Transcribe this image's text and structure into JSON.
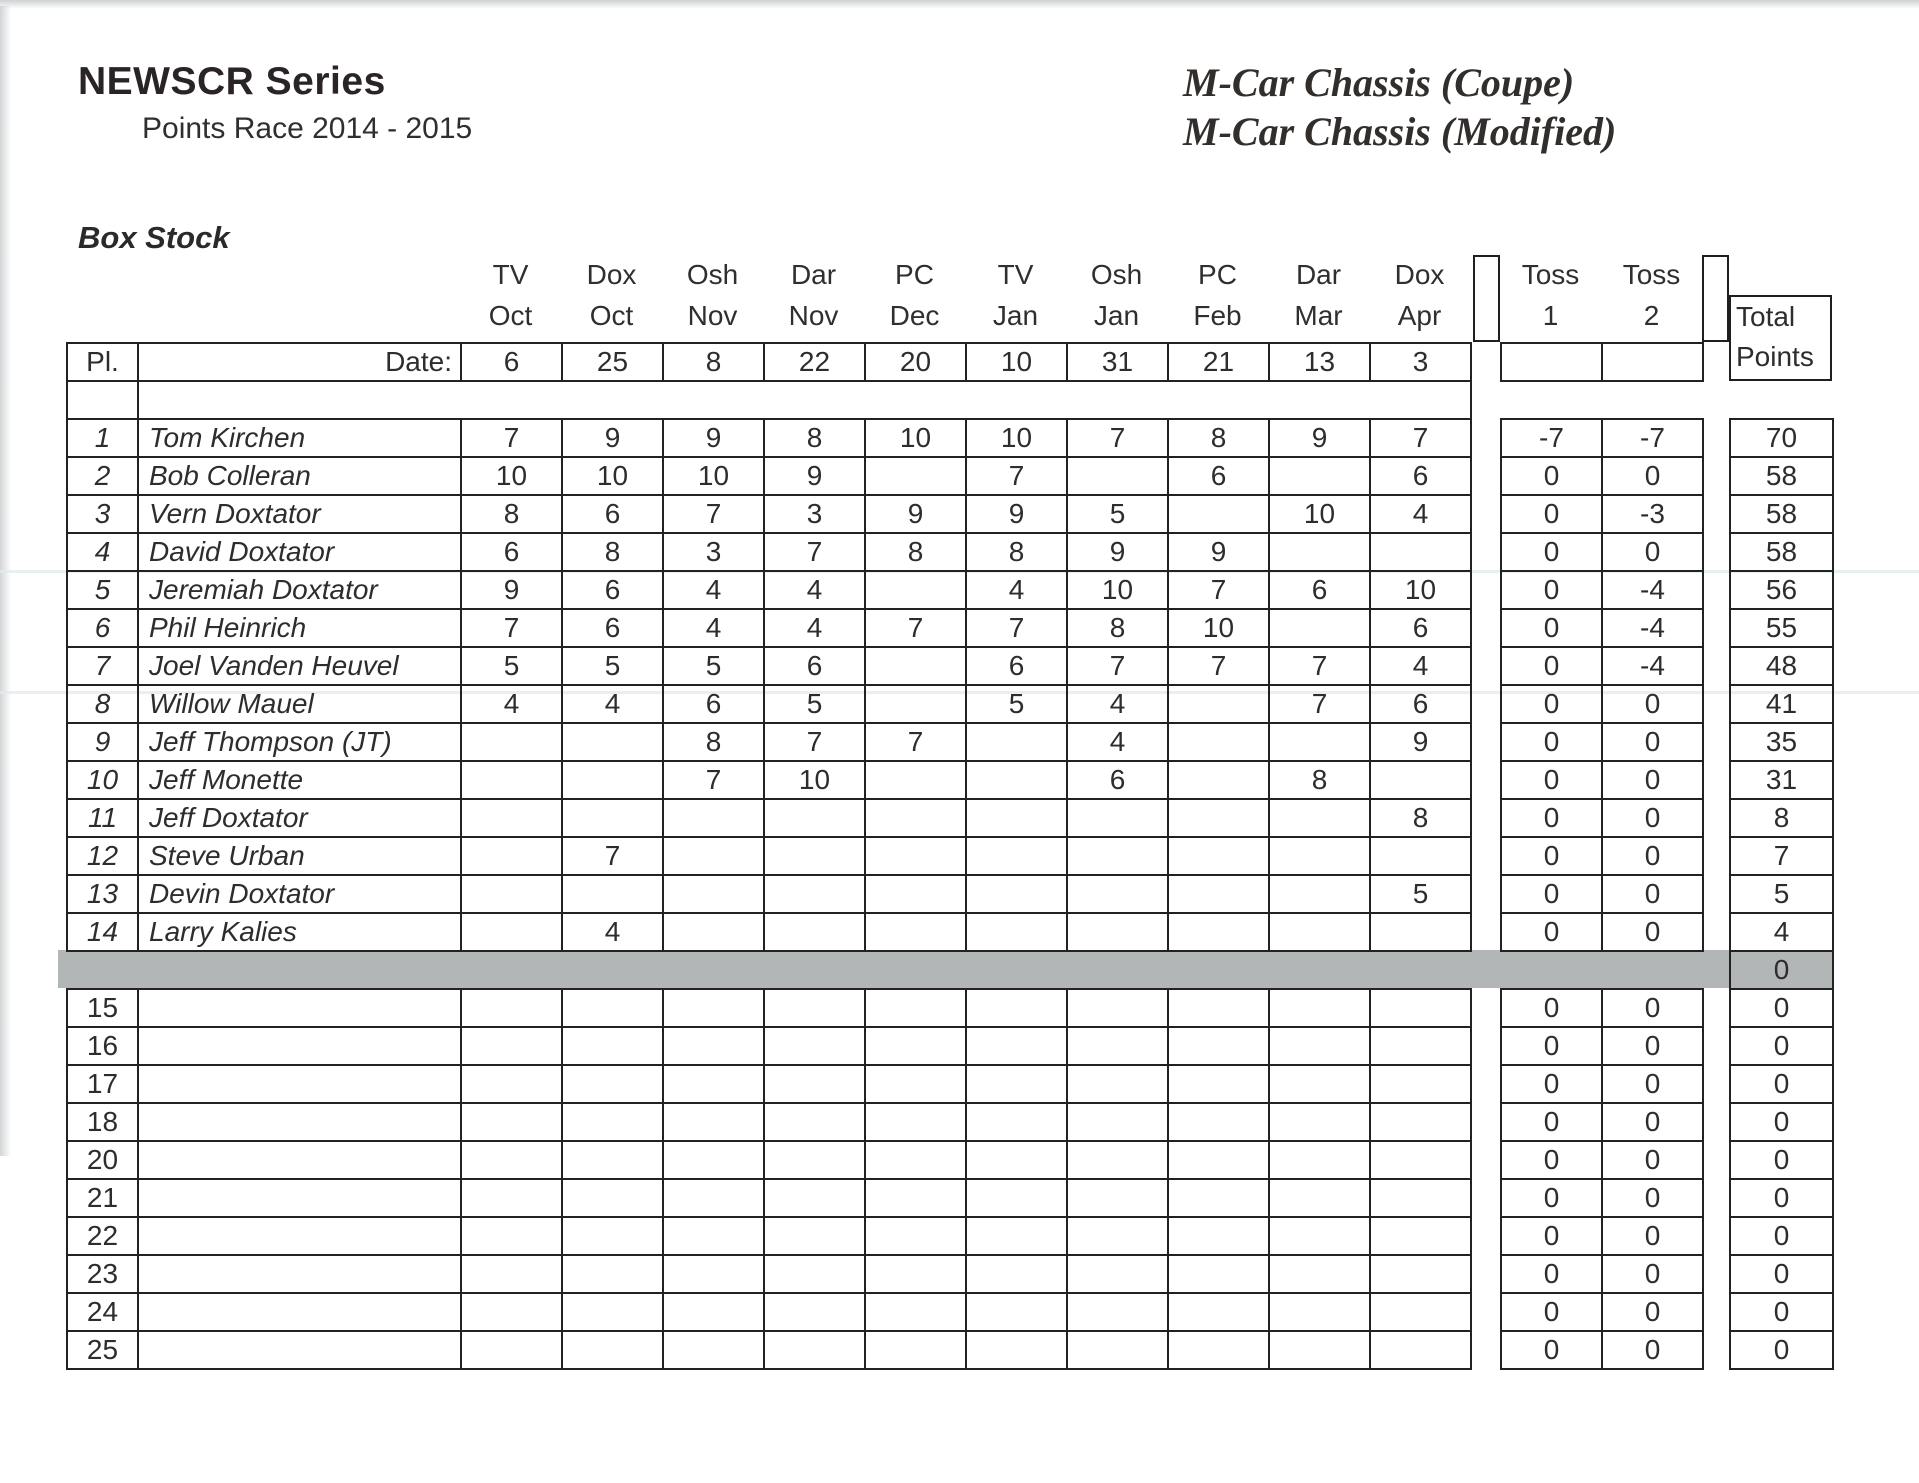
{
  "header": {
    "series_title": "NEWSCR Series",
    "subtitle": "Points Race 2014 - 2015",
    "chassis_coupe": "M-Car Chassis (Coupe)",
    "chassis_modified": "M-Car Chassis (Modified)",
    "class_name": "Box Stock"
  },
  "table": {
    "pl_header": "Pl.",
    "date_label": "Date:",
    "races": [
      {
        "venue": "TV",
        "month": "Oct",
        "date": "6"
      },
      {
        "venue": "Dox",
        "month": "Oct",
        "date": "25"
      },
      {
        "venue": "Osh",
        "month": "Nov",
        "date": "8"
      },
      {
        "venue": "Dar",
        "month": "Nov",
        "date": "22"
      },
      {
        "venue": "PC",
        "month": "Dec",
        "date": "20"
      },
      {
        "venue": "TV",
        "month": "Jan",
        "date": "10"
      },
      {
        "venue": "Osh",
        "month": "Jan",
        "date": "31"
      },
      {
        "venue": "PC",
        "month": "Feb",
        "date": "21"
      },
      {
        "venue": "Dar",
        "month": "Mar",
        "date": "13"
      },
      {
        "venue": "Dox",
        "month": "Apr",
        "date": "3"
      }
    ],
    "toss_columns": [
      {
        "line1": "Toss",
        "line2": "1"
      },
      {
        "line1": "Toss",
        "line2": "2"
      }
    ],
    "total_header": {
      "line1": "Total",
      "line2": "Points"
    },
    "standings": [
      {
        "pl": "1",
        "name": "Tom Kirchen",
        "scores": [
          "7",
          "9",
          "9",
          "8",
          "10",
          "10",
          "7",
          "8",
          "9",
          "7"
        ],
        "toss": [
          "-7",
          "-7"
        ],
        "total": "70"
      },
      {
        "pl": "2",
        "name": "Bob Colleran",
        "scores": [
          "10",
          "10",
          "10",
          "9",
          "",
          "7",
          "",
          "6",
          "",
          "6"
        ],
        "toss": [
          "0",
          "0"
        ],
        "total": "58"
      },
      {
        "pl": "3",
        "name": "Vern Doxtator",
        "scores": [
          "8",
          "6",
          "7",
          "3",
          "9",
          "9",
          "5",
          "",
          "10",
          "4"
        ],
        "toss": [
          "0",
          "-3"
        ],
        "total": "58"
      },
      {
        "pl": "4",
        "name": "David Doxtator",
        "scores": [
          "6",
          "8",
          "3",
          "7",
          "8",
          "8",
          "9",
          "9",
          "",
          ""
        ],
        "toss": [
          "0",
          "0"
        ],
        "total": "58"
      },
      {
        "pl": "5",
        "name": "Jeremiah Doxtator",
        "scores": [
          "9",
          "6",
          "4",
          "4",
          "",
          "4",
          "10",
          "7",
          "6",
          "10"
        ],
        "toss": [
          "0",
          "-4"
        ],
        "total": "56"
      },
      {
        "pl": "6",
        "name": "Phil Heinrich",
        "scores": [
          "7",
          "6",
          "4",
          "4",
          "7",
          "7",
          "8",
          "10",
          "",
          "6"
        ],
        "toss": [
          "0",
          "-4"
        ],
        "total": "55"
      },
      {
        "pl": "7",
        "name": "Joel Vanden Heuvel",
        "scores": [
          "5",
          "5",
          "5",
          "6",
          "",
          "6",
          "7",
          "7",
          "7",
          "4"
        ],
        "toss": [
          "0",
          "-4"
        ],
        "total": "48"
      },
      {
        "pl": "8",
        "name": "Willow Mauel",
        "scores": [
          "4",
          "4",
          "6",
          "5",
          "",
          "5",
          "4",
          "",
          "7",
          "6"
        ],
        "toss": [
          "0",
          "0"
        ],
        "total": "41"
      },
      {
        "pl": "9",
        "name": "Jeff Thompson (JT)",
        "scores": [
          "",
          "",
          "8",
          "7",
          "7",
          "",
          "4",
          "",
          "",
          "9"
        ],
        "toss": [
          "0",
          "0"
        ],
        "total": "35"
      },
      {
        "pl": "10",
        "name": "Jeff Monette",
        "scores": [
          "",
          "",
          "7",
          "10",
          "",
          "",
          "6",
          "",
          "8",
          ""
        ],
        "toss": [
          "0",
          "0"
        ],
        "total": "31"
      },
      {
        "pl": "11",
        "name": "Jeff Doxtator",
        "scores": [
          "",
          "",
          "",
          "",
          "",
          "",
          "",
          "",
          "",
          "8"
        ],
        "toss": [
          "0",
          "0"
        ],
        "total": "8"
      },
      {
        "pl": "12",
        "name": "Steve Urban",
        "scores": [
          "",
          "7",
          "",
          "",
          "",
          "",
          "",
          "",
          "",
          ""
        ],
        "toss": [
          "0",
          "0"
        ],
        "total": "7"
      },
      {
        "pl": "13",
        "name": "Devin Doxtator",
        "scores": [
          "",
          "",
          "",
          "",
          "",
          "",
          "",
          "",
          "",
          "5"
        ],
        "toss": [
          "0",
          "0"
        ],
        "total": "5"
      },
      {
        "pl": "14",
        "name": "Larry Kalies",
        "scores": [
          "",
          "4",
          "",
          "",
          "",
          "",
          "",
          "",
          "",
          ""
        ],
        "toss": [
          "0",
          "0"
        ],
        "total": "4"
      }
    ],
    "separator_row": {
      "total": "0",
      "color": "#b3b6b7"
    },
    "empty_rows": {
      "numbers": [
        "15",
        "16",
        "17",
        "18",
        "20",
        "21",
        "22",
        "23",
        "24",
        "25"
      ],
      "toss": [
        "0",
        "0"
      ],
      "total": "0"
    }
  }
}
